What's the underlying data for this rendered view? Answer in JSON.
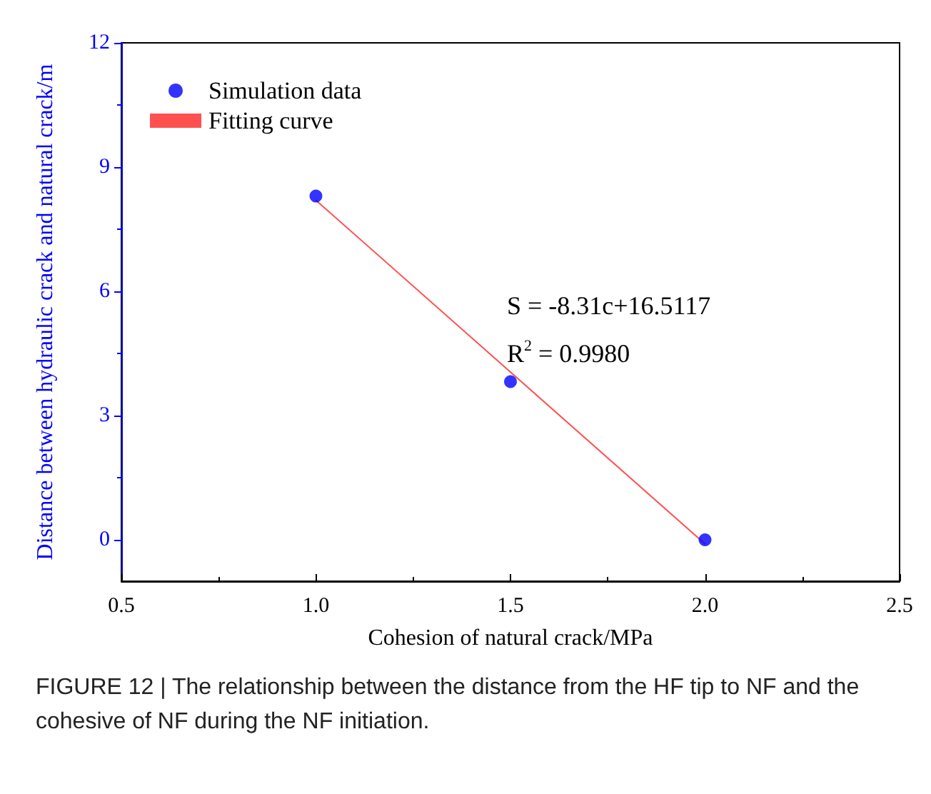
{
  "chart_data": {
    "type": "scatter",
    "xlabel": "Cohesion of natural crack/MPa",
    "ylabel": "Distance between hydraulic crack and natural crack/m",
    "x": [
      1.0,
      1.5,
      2.0
    ],
    "series": [
      {
        "name": "Simulation data",
        "color": "#0000ff",
        "marker": "circle",
        "values": [
          8.3,
          3.82,
          0.0
        ]
      },
      {
        "name": "Fitting curve",
        "type": "line",
        "color": "#ff5050",
        "marker": "none",
        "line_style": "solid",
        "x": [
          1.0,
          2.0
        ],
        "values": [
          8.2,
          -0.1
        ]
      }
    ],
    "xlim": [
      0.5,
      2.5
    ],
    "xticks": [
      0.5,
      {
        "value": 1,
        "label": "1.0"
      },
      1.5,
      {
        "value": 2,
        "label": "2.0"
      },
      2.5
    ],
    "ylim": [
      -1,
      12
    ],
    "yticks": [
      0,
      3,
      6,
      9,
      12
    ],
    "grid": false,
    "legend": "top left",
    "annotations": [
      "S = -8.31c+16.5117",
      "R$^{2}$ = 0.9980",
      "FIGURE 12 | The relationship between the distance from the HF tip to NF and the cohesive of NF during the NF initiation."
    ]
  }
}
